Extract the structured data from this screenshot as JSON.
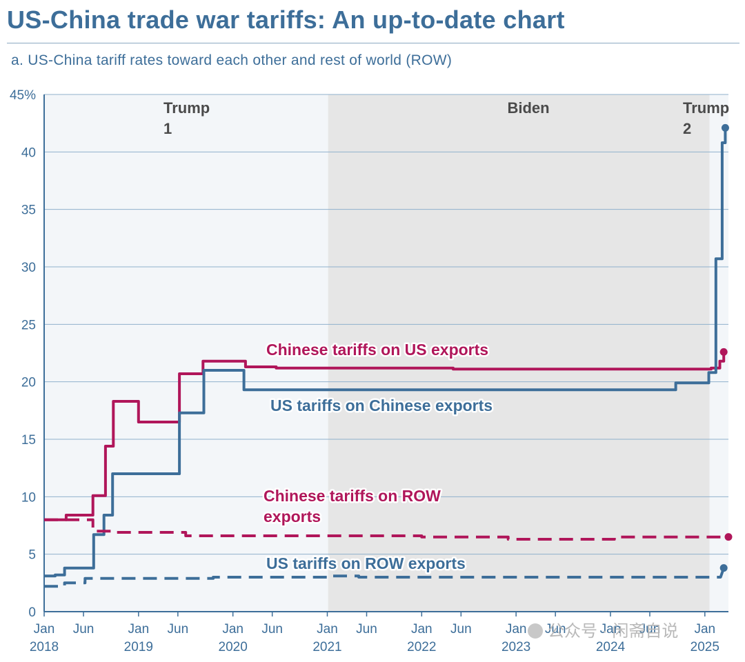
{
  "title": "US-China trade war tariffs: An up-to-date chart",
  "watermark": "公众号 · 闲斋自说",
  "chart_data": {
    "type": "line",
    "title": "a. US-China tariff rates toward each other and rest of world (ROW)",
    "xlabel": "",
    "ylabel": "",
    "x_unit": "months since Jan 2018",
    "xlim": [
      0,
      87
    ],
    "ylim": [
      0,
      45
    ],
    "y_ticks": [
      {
        "value": 45,
        "label": "45%"
      },
      {
        "value": 40,
        "label": "40"
      },
      {
        "value": 35,
        "label": "35"
      },
      {
        "value": 30,
        "label": "30"
      },
      {
        "value": 25,
        "label": "25"
      },
      {
        "value": 20,
        "label": "20"
      },
      {
        "value": 15,
        "label": "15"
      },
      {
        "value": 10,
        "label": "10"
      },
      {
        "value": 5,
        "label": "5"
      },
      {
        "value": 0,
        "label": "0"
      }
    ],
    "x_ticks": [
      {
        "value": 0,
        "label": "Jan",
        "year": "2018"
      },
      {
        "value": 5,
        "label": "Jun",
        "year": ""
      },
      {
        "value": 12,
        "label": "Jan",
        "year": "2019"
      },
      {
        "value": 17,
        "label": "Jun",
        "year": ""
      },
      {
        "value": 24,
        "label": "Jan",
        "year": "2020"
      },
      {
        "value": 29,
        "label": "Jun",
        "year": ""
      },
      {
        "value": 36,
        "label": "Jan",
        "year": "2021"
      },
      {
        "value": 41,
        "label": "Jun",
        "year": ""
      },
      {
        "value": 48,
        "label": "Jan",
        "year": "2022"
      },
      {
        "value": 53,
        "label": "Jun",
        "year": ""
      },
      {
        "value": 60,
        "label": "Jan",
        "year": "2023"
      },
      {
        "value": 65,
        "label": "Jun",
        "year": ""
      },
      {
        "value": 72,
        "label": "Jan",
        "year": "2024"
      },
      {
        "value": 77,
        "label": "Jun",
        "year": ""
      },
      {
        "value": 84,
        "label": "Jan",
        "year": "2025"
      }
    ],
    "grid": true,
    "periods": [
      {
        "line1": "Trump",
        "line2": "1",
        "start": 0,
        "end": 36.1,
        "shade": "#f3f6f9"
      },
      {
        "line1": "Biden",
        "line2": "",
        "start": 36.1,
        "end": 84.6,
        "shade": "#e6e6e6"
      },
      {
        "line1": "Trump",
        "line2": "2",
        "start": 84.6,
        "end": 87,
        "shade": "#f3f6f9"
      }
    ],
    "series": [
      {
        "name": "Chinese tariffs on US exports",
        "color": "#b0165a",
        "style": "step-solid",
        "end_dot": true,
        "points": [
          [
            0,
            8
          ],
          [
            2.8,
            8
          ],
          [
            2.8,
            8.4
          ],
          [
            6.2,
            8.4
          ],
          [
            6.2,
            10.1
          ],
          [
            7.8,
            10.1
          ],
          [
            7.8,
            14.4
          ],
          [
            8.8,
            14.4
          ],
          [
            8.8,
            18.3
          ],
          [
            12,
            18.3
          ],
          [
            12,
            16.5
          ],
          [
            17.2,
            16.5
          ],
          [
            17.2,
            20.7
          ],
          [
            20.2,
            20.7
          ],
          [
            20.2,
            21.8
          ],
          [
            25.6,
            21.8
          ],
          [
            25.6,
            21.3
          ],
          [
            29.5,
            21.3
          ],
          [
            29.5,
            21.2
          ],
          [
            52,
            21.2
          ],
          [
            52,
            21.1
          ],
          [
            84.8,
            21.1
          ],
          [
            84.8,
            21.2
          ],
          [
            85.9,
            21.2
          ],
          [
            85.9,
            21.8
          ],
          [
            86.4,
            21.8
          ],
          [
            86.4,
            22.6
          ]
        ]
      },
      {
        "name": "US tariffs on Chinese exports",
        "color": "#3d6e99",
        "style": "step-solid",
        "end_dot": true,
        "points": [
          [
            0,
            3.1
          ],
          [
            1.4,
            3.1
          ],
          [
            1.4,
            3.2
          ],
          [
            2.6,
            3.2
          ],
          [
            2.6,
            3.8
          ],
          [
            6.3,
            3.8
          ],
          [
            6.3,
            6.7
          ],
          [
            7.6,
            6.7
          ],
          [
            7.6,
            8.4
          ],
          [
            8.7,
            8.4
          ],
          [
            8.7,
            12
          ],
          [
            17.2,
            12
          ],
          [
            17.2,
            17.3
          ],
          [
            20.3,
            17.3
          ],
          [
            20.3,
            21
          ],
          [
            25.4,
            21
          ],
          [
            25.4,
            19.3
          ],
          [
            80.3,
            19.3
          ],
          [
            80.3,
            19.9
          ],
          [
            84.5,
            19.9
          ],
          [
            84.5,
            20.8
          ],
          [
            85.4,
            20.8
          ],
          [
            85.4,
            30.7
          ],
          [
            86.2,
            30.7
          ],
          [
            86.2,
            40.8
          ],
          [
            86.6,
            40.8
          ],
          [
            86.6,
            42.1
          ]
        ]
      },
      {
        "name": "Chinese tariffs on ROW exports",
        "color": "#b0165a",
        "style": "dashed",
        "end_dot": true,
        "points": [
          [
            0,
            8
          ],
          [
            6.2,
            8
          ],
          [
            6.2,
            7
          ],
          [
            8.7,
            7
          ],
          [
            8.7,
            6.9
          ],
          [
            18,
            6.9
          ],
          [
            18,
            6.6
          ],
          [
            48,
            6.6
          ],
          [
            48,
            6.5
          ],
          [
            59,
            6.5
          ],
          [
            59,
            6.3
          ],
          [
            72.5,
            6.3
          ],
          [
            72.5,
            6.5
          ],
          [
            87,
            6.5
          ]
        ]
      },
      {
        "name": "US tariffs on ROW exports",
        "color": "#3d6e99",
        "style": "dashed",
        "end_dot": true,
        "points": [
          [
            0,
            2.2
          ],
          [
            2.6,
            2.2
          ],
          [
            2.6,
            2.5
          ],
          [
            5.2,
            2.5
          ],
          [
            5.2,
            2.9
          ],
          [
            21.5,
            2.9
          ],
          [
            21.5,
            3
          ],
          [
            36,
            3
          ],
          [
            36,
            3.1
          ],
          [
            40,
            3.1
          ],
          [
            40,
            3
          ],
          [
            86,
            3
          ],
          [
            86.4,
            3.8
          ]
        ]
      }
    ],
    "annotations": [
      {
        "text": "Chinese tariffs on US exports",
        "lines": [
          "Chinese tariffs on US exports"
        ],
        "color": "#b0165a"
      },
      {
        "text": "US tariffs on Chinese exports",
        "lines": [
          "US tariffs on Chinese exports"
        ],
        "color": "#3d6e99"
      },
      {
        "text": "Chinese tariffs on ROW exports",
        "lines": [
          "Chinese tariffs on ROW",
          "exports"
        ],
        "color": "#b0165a"
      },
      {
        "text": "US tariffs on ROW exports",
        "lines": [
          "US tariffs on ROW exports"
        ],
        "color": "#3d6e99"
      }
    ]
  }
}
